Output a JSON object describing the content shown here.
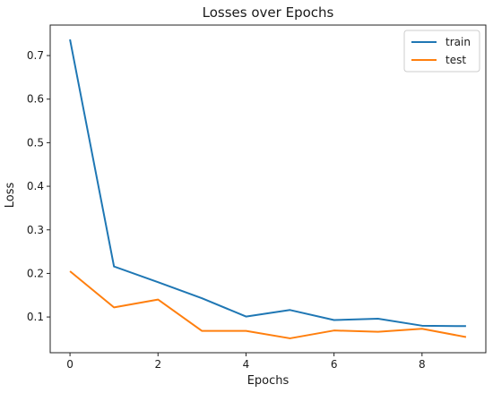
{
  "chart_data": {
    "type": "line",
    "title": "Losses over Epochs",
    "xlabel": "Epochs",
    "ylabel": "Loss",
    "x": [
      0,
      1,
      2,
      3,
      4,
      5,
      6,
      7,
      8,
      9
    ],
    "xticks": [
      "0",
      "2",
      "4",
      "6",
      "8"
    ],
    "xtick_values": [
      0,
      2,
      4,
      6,
      8
    ],
    "yticks": [
      "0.1",
      "0.2",
      "0.3",
      "0.4",
      "0.5",
      "0.6",
      "0.7"
    ],
    "ytick_values": [
      0.1,
      0.2,
      0.3,
      0.4,
      0.5,
      0.6,
      0.7
    ],
    "xlim": [
      -0.45,
      9.45
    ],
    "ylim": [
      0.018,
      0.77
    ],
    "grid": false,
    "legend_position": "top-right",
    "series": [
      {
        "name": "train",
        "color": "#1f77b4",
        "values": [
          0.737,
          0.216,
          0.18,
          0.143,
          0.101,
          0.116,
          0.093,
          0.096,
          0.08,
          0.079
        ]
      },
      {
        "name": "test",
        "color": "#ff7f0e",
        "values": [
          0.205,
          0.122,
          0.14,
          0.068,
          0.068,
          0.051,
          0.069,
          0.066,
          0.073,
          0.054
        ]
      }
    ]
  }
}
